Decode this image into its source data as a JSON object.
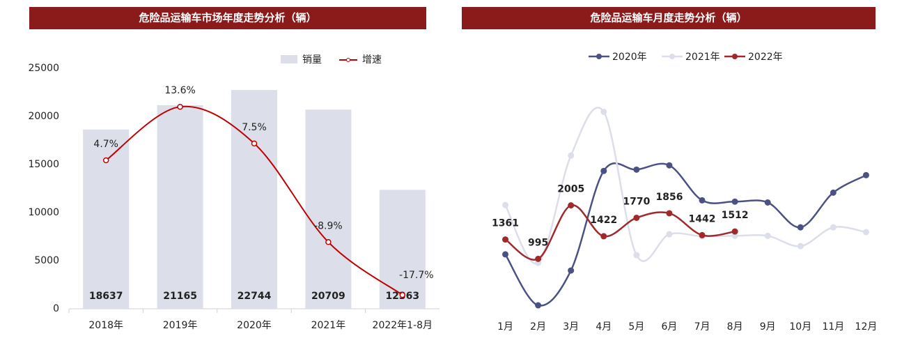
{
  "chart_data": [
    {
      "type": "bar",
      "title": "危险品运输车市场年度走势分析（辆）",
      "categories": [
        "2018年",
        "2019年",
        "2020年",
        "2021年",
        "2022年1-8月"
      ],
      "series": [
        {
          "name": "销量",
          "type": "bar",
          "color": "#dcdee9",
          "values": [
            18637,
            21165,
            22744,
            20709,
            12363
          ]
        },
        {
          "name": "增速",
          "type": "line",
          "axis": "y2",
          "color": "#c00000",
          "values": [
            4.7,
            13.6,
            7.5,
            -8.9,
            -17.7
          ],
          "value_labels": [
            "4.7%",
            "13.6%",
            "7.5%",
            "-8.9%",
            "-17.7%"
          ]
        }
      ],
      "ylim": [
        0,
        25000
      ],
      "yticks": [
        0,
        5000,
        10000,
        15000,
        20000,
        25000
      ],
      "y2lim": [
        -20,
        20
      ]
    },
    {
      "type": "line",
      "title": "危险品运输车月度走势分析（辆）",
      "categories": [
        "1月",
        "2月",
        "3月",
        "4月",
        "5月",
        "6月",
        "7月",
        "8月",
        "9月",
        "10月",
        "11月",
        "12月"
      ],
      "series": [
        {
          "name": "2020年",
          "color": "#4b5283",
          "values": [
            1080,
            118,
            775,
            2655,
            2680,
            2760,
            2100,
            2075,
            2060,
            1590,
            2245,
            2575
          ]
        },
        {
          "name": "2021年",
          "color": "#dcdee9",
          "values": [
            2010,
            920,
            2945,
            3770,
            1065,
            1460,
            1420,
            1430,
            1430,
            1235,
            1590,
            1500
          ]
        },
        {
          "name": "2022年",
          "color": "#a0292c",
          "values": [
            1361,
            995,
            2005,
            1422,
            1770,
            1856,
            1442,
            1512,
            null,
            null,
            null,
            null
          ],
          "show_labels": true
        }
      ],
      "ylim": [
        0,
        4500
      ]
    }
  ]
}
